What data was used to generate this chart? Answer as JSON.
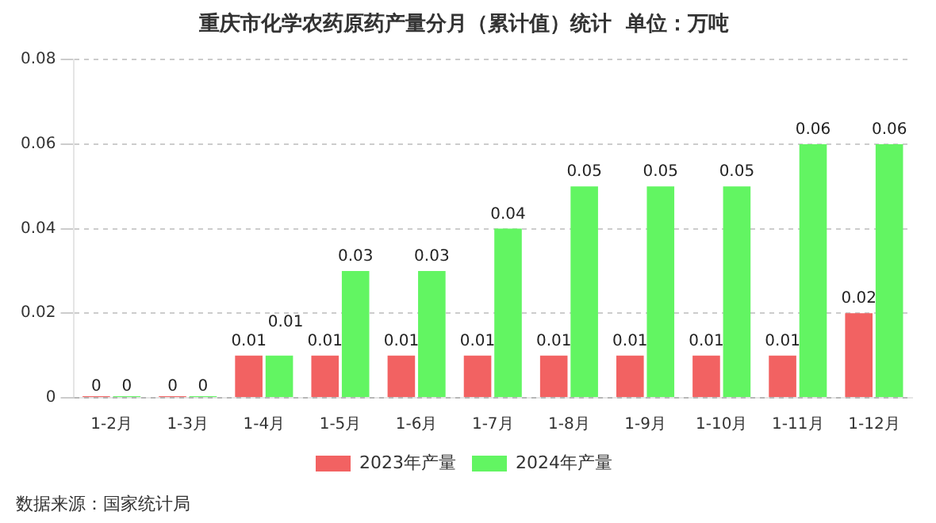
{
  "chart_data": {
    "type": "bar",
    "title": "重庆市化学农药原药产量分月（累计值）统计  单位：万吨",
    "categories": [
      "1-2月",
      "1-3月",
      "1-4月",
      "1-5月",
      "1-6月",
      "1-7月",
      "1-8月",
      "1-9月",
      "1-10月",
      "1-11月",
      "1-12月"
    ],
    "series": [
      {
        "name": "2023年产量",
        "color": "#f26262",
        "values": [
          0,
          0,
          0.01,
          0.01,
          0.01,
          0.01,
          0.01,
          0.01,
          0.01,
          0.01,
          0.02
        ]
      },
      {
        "name": "2024年产量",
        "color": "#62f562",
        "values": [
          0,
          0,
          0.01,
          0.03,
          0.03,
          0.04,
          0.05,
          0.05,
          0.05,
          0.06,
          0.06
        ]
      }
    ],
    "ylim": [
      0,
      0.08
    ],
    "yticks": [
      0,
      0.02,
      0.04,
      0.06,
      0.08
    ],
    "grid": "y",
    "legend": "bottom",
    "data_labels": true,
    "annotations": [
      "数据来源：国家统计局"
    ]
  }
}
